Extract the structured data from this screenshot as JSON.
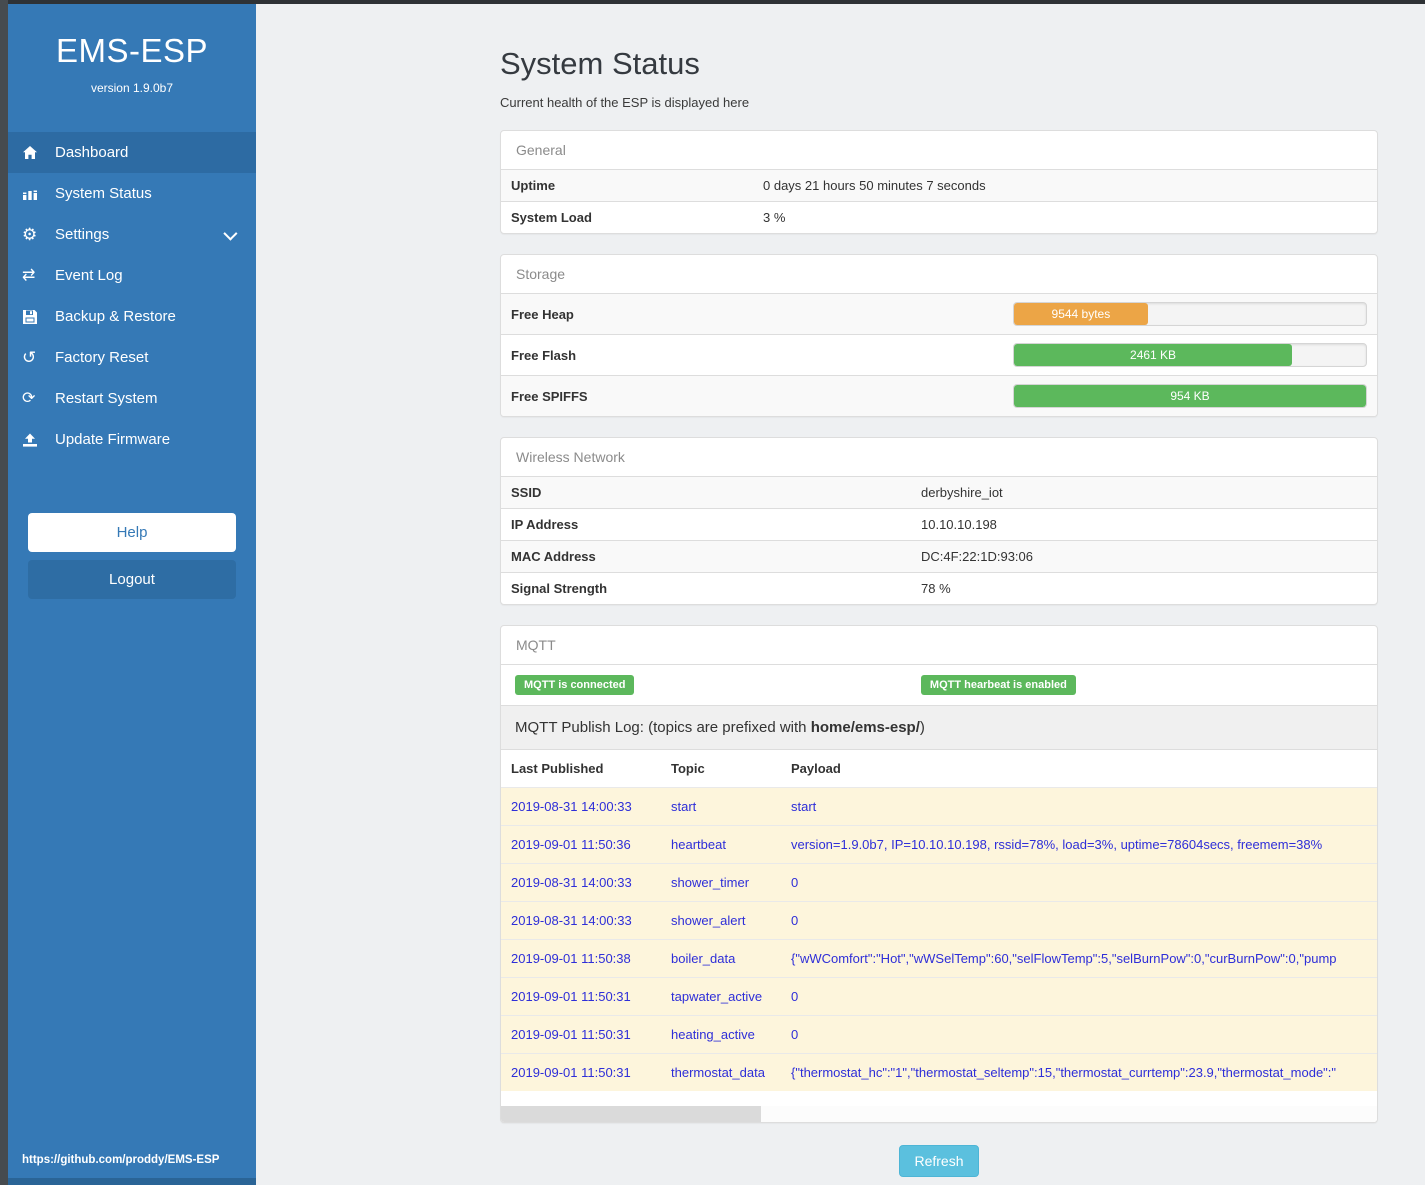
{
  "sidebar": {
    "title": "EMS-ESP",
    "version": "version 1.9.0b7",
    "items": [
      {
        "label": "Dashboard",
        "icon": "home-icon",
        "active": true,
        "chevron": false
      },
      {
        "label": "System Status",
        "icon": "status-bars-icon",
        "active": false,
        "chevron": false
      },
      {
        "label": "Settings",
        "icon": "gear-icon",
        "active": false,
        "chevron": true
      },
      {
        "label": "Event Log",
        "icon": "exchange-icon",
        "active": false,
        "chevron": false
      },
      {
        "label": "Backup & Restore",
        "icon": "save-icon",
        "active": false,
        "chevron": false
      },
      {
        "label": "Factory Reset",
        "icon": "rotate-left-icon",
        "active": false,
        "chevron": false
      },
      {
        "label": "Restart System",
        "icon": "refresh-icon",
        "active": false,
        "chevron": false
      },
      {
        "label": "Update Firmware",
        "icon": "upload-icon",
        "active": false,
        "chevron": false
      }
    ],
    "help_label": "Help",
    "logout_label": "Logout",
    "footer_url": "https://github.com/proddy/EMS-ESP"
  },
  "page": {
    "title": "System Status",
    "subtitle": "Current health of the ESP is displayed here",
    "refresh_label": "Refresh"
  },
  "panels": {
    "general": {
      "title": "General",
      "rows": [
        {
          "label": "Uptime",
          "value": "0 days 21 hours 50 minutes 7 seconds"
        },
        {
          "label": "System Load",
          "value": "3 %"
        }
      ]
    },
    "storage": {
      "title": "Storage",
      "rows": [
        {
          "label": "Free Heap",
          "bar_label": "9544 bytes",
          "percent": 38,
          "color": "#eca546"
        },
        {
          "label": "Free Flash",
          "bar_label": "2461 KB",
          "percent": 79,
          "color": "#5cb85c"
        },
        {
          "label": "Free SPIFFS",
          "bar_label": "954 KB",
          "percent": 100,
          "color": "#5cb85c"
        }
      ]
    },
    "wireless": {
      "title": "Wireless Network",
      "rows": [
        {
          "label": "SSID",
          "value": "derbyshire_iot"
        },
        {
          "label": "IP Address",
          "value": "10.10.10.198"
        },
        {
          "label": "MAC Address",
          "value": "DC:4F:22:1D:93:06"
        },
        {
          "label": "Signal Strength",
          "value": "78 %"
        }
      ]
    },
    "mqtt": {
      "title": "MQTT",
      "badges": [
        "MQTT is connected",
        "MQTT hearbeat is enabled"
      ],
      "caption_prefix": "MQTT Publish Log: (topics are prefixed with ",
      "caption_bold": "home/ems-esp/",
      "caption_suffix": ")",
      "table": {
        "headers": [
          "Last Published",
          "Topic",
          "Payload"
        ],
        "rows": [
          {
            "time": "2019-08-31 14:00:33",
            "topic": "start",
            "payload": "start"
          },
          {
            "time": "2019-09-01 11:50:36",
            "topic": "heartbeat",
            "payload": "version=1.9.0b7, IP=10.10.10.198, rssid=78%, load=3%, uptime=78604secs, freemem=38%"
          },
          {
            "time": "2019-08-31 14:00:33",
            "topic": "shower_timer",
            "payload": "0"
          },
          {
            "time": "2019-08-31 14:00:33",
            "topic": "shower_alert",
            "payload": "0"
          },
          {
            "time": "2019-09-01 11:50:38",
            "topic": "boiler_data",
            "payload": "{\"wWComfort\":\"Hot\",\"wWSelTemp\":60,\"selFlowTemp\":5,\"selBurnPow\":0,\"curBurnPow\":0,\"pump"
          },
          {
            "time": "2019-09-01 11:50:31",
            "topic": "tapwater_active",
            "payload": "0"
          },
          {
            "time": "2019-09-01 11:50:31",
            "topic": "heating_active",
            "payload": "0"
          },
          {
            "time": "2019-09-01 11:50:31",
            "topic": "thermostat_data",
            "payload": "{\"thermostat_hc\":\"1\",\"thermostat_seltemp\":15,\"thermostat_currtemp\":23.9,\"thermostat_mode\":\""
          }
        ]
      }
    }
  },
  "colors": {
    "sidebar_blue": "#3579b6",
    "active_item_blue": "#2d6ba3",
    "logout_blue": "#2e6da4",
    "badge_green": "#5cb85c",
    "heap_orange": "#eca546",
    "refresh_cyan": "#5bc0de",
    "log_row_cream": "#fdf5dc",
    "log_text_blue": "#2e2ed8"
  }
}
